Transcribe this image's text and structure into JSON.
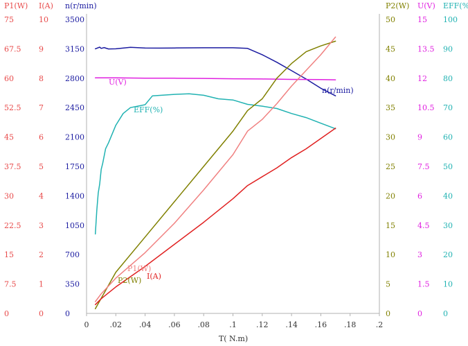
{
  "chart_data": {
    "type": "line",
    "title": "",
    "xlabel": "T( N.m)",
    "xlim": [
      0,
      0.2
    ],
    "x_ticks": [
      "0",
      ".02",
      ".04",
      ".06",
      ".08",
      ".1",
      ".12",
      ".14",
      ".16",
      ".18",
      ".2"
    ],
    "grid": false,
    "axes": [
      {
        "id": "p1",
        "label": "P1(W)",
        "color": "#e84a4a",
        "range": [
          0,
          75
        ],
        "ticks": [
          "0",
          "7.5",
          "15",
          "22.5",
          "30",
          "37.5",
          "45",
          "52.5",
          "60",
          "67.5",
          "75"
        ]
      },
      {
        "id": "i",
        "label": "I(A)",
        "color": "#e84a4a",
        "range": [
          0,
          10
        ],
        "ticks": [
          "0",
          "1",
          "2",
          "3",
          "4",
          "5",
          "6",
          "7",
          "8",
          "9",
          "10"
        ]
      },
      {
        "id": "n",
        "label": "n(r/min)",
        "color": "#1a1aa0",
        "range": [
          0,
          3500
        ],
        "ticks": [
          "0",
          "350",
          "700",
          "1050",
          "1400",
          "1750",
          "2100",
          "2450",
          "2800",
          "3150",
          "3500"
        ]
      },
      {
        "id": "p2",
        "label": "P2(W)",
        "color": "#808000",
        "range": [
          0,
          50
        ],
        "ticks": [
          "0",
          "5",
          "10",
          "15",
          "20",
          "25",
          "30",
          "35",
          "40",
          "45",
          "50"
        ]
      },
      {
        "id": "u",
        "label": "U(V)",
        "color": "#e020e0",
        "range": [
          0,
          15
        ],
        "ticks": [
          "0",
          "1.5",
          "3",
          "4.5",
          "6",
          "7.5",
          "9",
          "10.5",
          "12",
          "13.5",
          "15"
        ]
      },
      {
        "id": "eff",
        "label": "EFF(%)",
        "color": "#20b2b2",
        "range": [
          0,
          100
        ],
        "ticks": [
          "0",
          "10",
          "20",
          "30",
          "40",
          "50",
          "60",
          "70",
          "80",
          "90",
          "100"
        ]
      }
    ],
    "series": [
      {
        "name": "n(r/min)",
        "axis": "n",
        "color": "#1a1aa0",
        "points": [
          [
            0.006,
            3150
          ],
          [
            0.009,
            3170
          ],
          [
            0.01,
            3155
          ],
          [
            0.012,
            3165
          ],
          [
            0.015,
            3148
          ],
          [
            0.02,
            3150
          ],
          [
            0.03,
            3168
          ],
          [
            0.04,
            3160
          ],
          [
            0.05,
            3158
          ],
          [
            0.06,
            3160
          ],
          [
            0.08,
            3162
          ],
          [
            0.1,
            3162
          ],
          [
            0.11,
            3155
          ],
          [
            0.12,
            3080
          ],
          [
            0.13,
            2990
          ],
          [
            0.14,
            2890
          ],
          [
            0.15,
            2790
          ],
          [
            0.16,
            2680
          ],
          [
            0.17,
            2590
          ]
        ]
      },
      {
        "name": "U(V)",
        "axis": "u",
        "color": "#e020e0",
        "points": [
          [
            0.006,
            12.02
          ],
          [
            0.02,
            12.02
          ],
          [
            0.04,
            12.0
          ],
          [
            0.06,
            12.0
          ],
          [
            0.08,
            11.99
          ],
          [
            0.1,
            11.97
          ],
          [
            0.12,
            11.96
          ],
          [
            0.14,
            11.94
          ],
          [
            0.16,
            11.93
          ],
          [
            0.17,
            11.92
          ]
        ]
      },
      {
        "name": "EFF(%)",
        "axis": "eff",
        "color": "#20b2b2",
        "points": [
          [
            0.006,
            27
          ],
          [
            0.007,
            35
          ],
          [
            0.008,
            41
          ],
          [
            0.009,
            44
          ],
          [
            0.01,
            49
          ],
          [
            0.011,
            51
          ],
          [
            0.013,
            56
          ],
          [
            0.015,
            58
          ],
          [
            0.02,
            64
          ],
          [
            0.025,
            68
          ],
          [
            0.03,
            70
          ],
          [
            0.04,
            71
          ],
          [
            0.045,
            74
          ],
          [
            0.06,
            74.5
          ],
          [
            0.07,
            74.7
          ],
          [
            0.08,
            74.2
          ],
          [
            0.09,
            73
          ],
          [
            0.1,
            72.6
          ],
          [
            0.11,
            71.1
          ],
          [
            0.12,
            70.5
          ],
          [
            0.13,
            69.7
          ],
          [
            0.14,
            68
          ],
          [
            0.15,
            66.6
          ],
          [
            0.16,
            64.7
          ],
          [
            0.17,
            62.8
          ]
        ]
      },
      {
        "name": "P2(W)",
        "axis": "p2",
        "color": "#808000",
        "points": [
          [
            0.006,
            0.8
          ],
          [
            0.02,
            7
          ],
          [
            0.04,
            13
          ],
          [
            0.06,
            19
          ],
          [
            0.08,
            25
          ],
          [
            0.1,
            31
          ],
          [
            0.11,
            34.5
          ],
          [
            0.12,
            36.5
          ],
          [
            0.13,
            40
          ],
          [
            0.14,
            42.5
          ],
          [
            0.15,
            44.5
          ],
          [
            0.16,
            45.5
          ],
          [
            0.17,
            46.3
          ]
        ]
      },
      {
        "name": "P1(W)",
        "axis": "p1",
        "color": "#f08080",
        "points": [
          [
            0.006,
            3
          ],
          [
            0.01,
            5
          ],
          [
            0.02,
            9
          ],
          [
            0.04,
            15.5
          ],
          [
            0.06,
            23
          ],
          [
            0.08,
            31.5
          ],
          [
            0.1,
            40.5
          ],
          [
            0.11,
            46.5
          ],
          [
            0.12,
            49.5
          ],
          [
            0.13,
            53.5
          ],
          [
            0.14,
            58
          ],
          [
            0.15,
            62
          ],
          [
            0.16,
            66
          ],
          [
            0.17,
            70.5
          ]
        ]
      },
      {
        "name": "I(A)",
        "axis": "i",
        "color": "#e02020",
        "points": [
          [
            0.006,
            0.3
          ],
          [
            0.01,
            0.5
          ],
          [
            0.02,
            0.9
          ],
          [
            0.04,
            1.6
          ],
          [
            0.06,
            2.35
          ],
          [
            0.08,
            3.1
          ],
          [
            0.1,
            3.9
          ],
          [
            0.11,
            4.35
          ],
          [
            0.12,
            4.65
          ],
          [
            0.13,
            4.95
          ],
          [
            0.14,
            5.3
          ],
          [
            0.15,
            5.6
          ],
          [
            0.16,
            5.95
          ],
          [
            0.17,
            6.3
          ]
        ]
      }
    ],
    "annotations": [
      {
        "text": "n(r/min)",
        "series": "n(r/min)"
      },
      {
        "text": "U(V)",
        "series": "U(V)"
      },
      {
        "text": "EFF(%)",
        "series": "EFF(%)"
      },
      {
        "text": "P1(W)",
        "series": "P1(W)"
      },
      {
        "text": "P2(W)",
        "series": "P2(W)"
      },
      {
        "text": "I(A)",
        "series": "I(A)"
      }
    ]
  }
}
